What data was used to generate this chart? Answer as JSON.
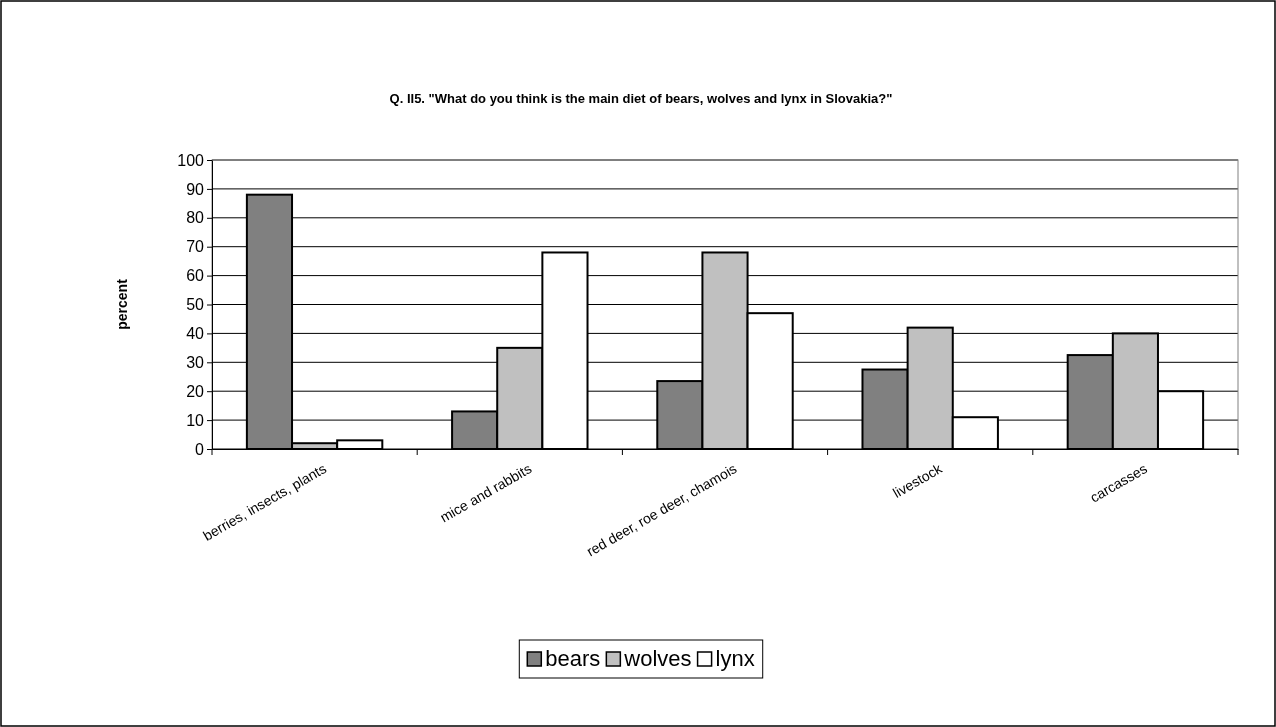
{
  "chart_data": {
    "type": "bar",
    "title": "Q. II5. \"What do you think is the main diet of bears, wolves and lynx in Slovakia?\"",
    "ylabel": "percent",
    "categories": [
      "berries, insects, plants",
      "mice and rabbits",
      "red deer, roe deer, chamois",
      "livestock",
      "carcasses"
    ],
    "series": [
      {
        "name": "bears",
        "color": "#808080",
        "values": [
          88,
          13,
          23.5,
          27.5,
          32.5
        ]
      },
      {
        "name": "wolves",
        "color": "#c0c0c0",
        "values": [
          2,
          35,
          68,
          42,
          40
        ]
      },
      {
        "name": "lynx",
        "color": "#ffffff",
        "values": [
          3,
          68,
          47,
          11,
          20
        ]
      }
    ],
    "ylim": [
      0,
      100
    ],
    "yticks": [
      0,
      10,
      20,
      30,
      40,
      50,
      60,
      70,
      80,
      90,
      100
    ],
    "grid": "y",
    "legend": "bottom"
  }
}
